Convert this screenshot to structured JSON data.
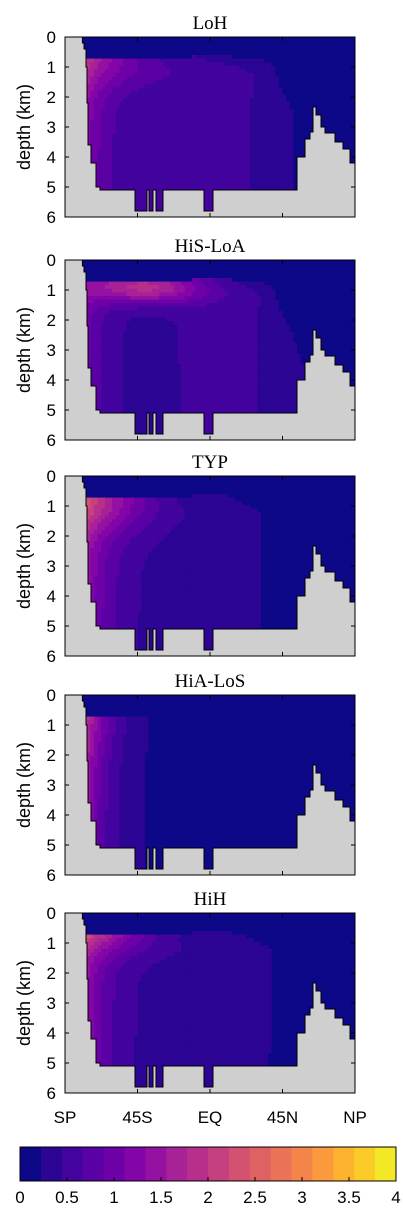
{
  "chart_data": {
    "type": "heatmap",
    "panels": [
      {
        "title": "LoH"
      },
      {
        "title": "HiS-LoA"
      },
      {
        "title": "TYP"
      },
      {
        "title": "HiA-LoS"
      },
      {
        "title": "HiH"
      }
    ],
    "ylabel": "depth (km)",
    "yticks": [
      "0",
      "1",
      "2",
      "3",
      "4",
      "5",
      "6"
    ],
    "ylim": [
      0,
      6
    ],
    "xticks": [
      "SP",
      "45S",
      "EQ",
      "45N",
      "NP"
    ],
    "xlim": [
      -90,
      90
    ],
    "colorbar": {
      "range": [
        0,
        4
      ],
      "step": 0.25,
      "ticks": [
        "0",
        "0.5",
        "1",
        "1.5",
        "2",
        "2.5",
        "3",
        "3.5",
        "4"
      ],
      "colors": [
        "#0d0887",
        "#2c0594",
        "#43039e",
        "#5901a5",
        "#6e00a8",
        "#8305a7",
        "#9511a1",
        "#a72197",
        "#b6308b",
        "#c5407e",
        "#d35171",
        "#df6263",
        "#e97257",
        "#f3854b",
        "#fa9a3c",
        "#fdb32f",
        "#fbcc27",
        "#f3e826"
      ]
    },
    "bathymetry_color": "#cfcfcf"
  }
}
